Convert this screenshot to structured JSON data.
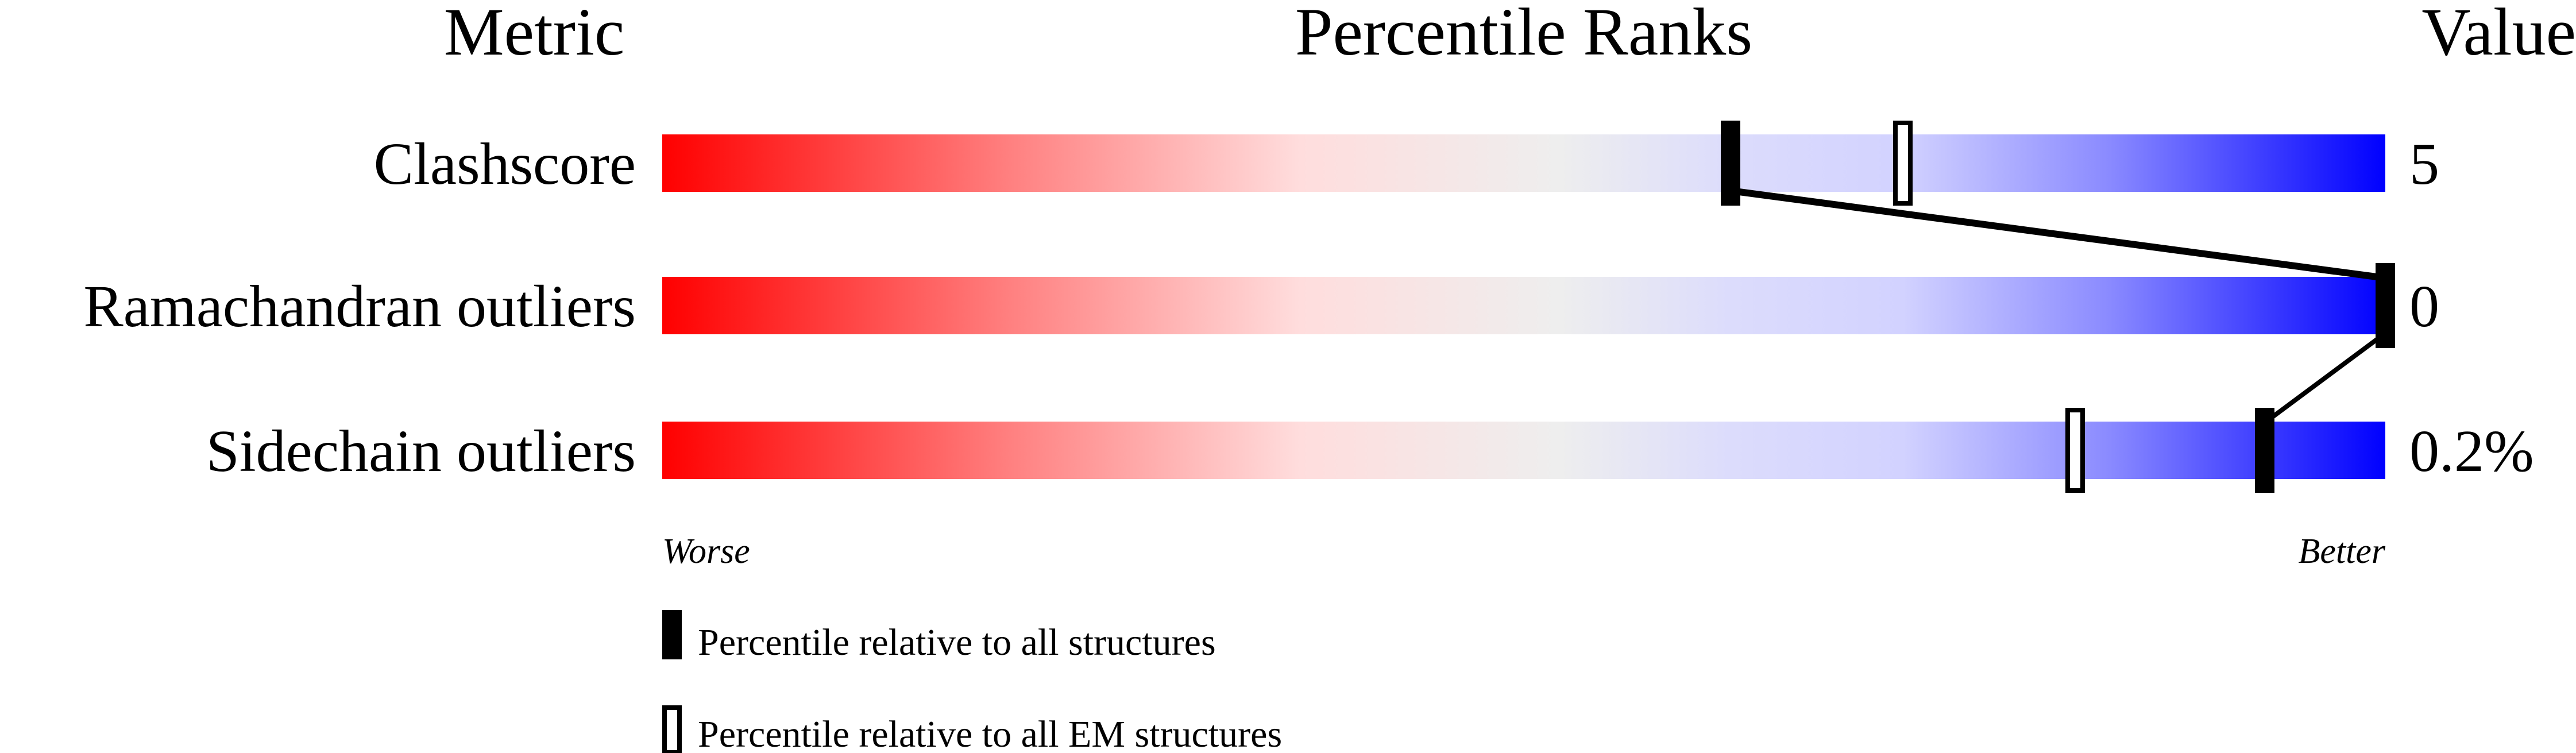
{
  "chart_data": {
    "type": "percentile-bar",
    "headers": {
      "metric": "Metric",
      "ranks": "Percentile Ranks",
      "value": "Value"
    },
    "xlim": [
      0,
      100
    ],
    "gradient": {
      "worse_color": "#ff0000",
      "mid_color": "#eeeeee",
      "better_color": "#0000ff"
    },
    "rows": [
      {
        "metric": "Clashscore",
        "value": "5",
        "percentile_all": 62,
        "percentile_em": 72
      },
      {
        "metric": "Ramachandran outliers",
        "value": "0",
        "percentile_all": 100,
        "percentile_em": null
      },
      {
        "metric": "Sidechain outliers",
        "value": "0.2%",
        "percentile_all": 93,
        "percentile_em": 82
      }
    ],
    "axis_labels": {
      "left": "Worse",
      "right": "Better"
    },
    "legend": [
      {
        "marker": "filled",
        "label": "Percentile relative to all structures"
      },
      {
        "marker": "open",
        "label": "Percentile relative to all EM structures"
      }
    ]
  }
}
